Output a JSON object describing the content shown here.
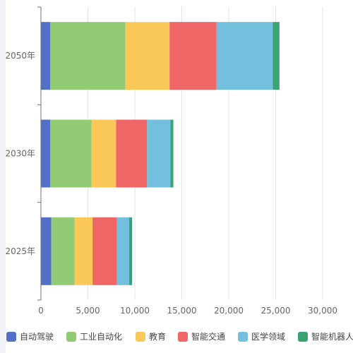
{
  "chart_data": {
    "type": "bar",
    "orientation": "horizontal",
    "stacked": true,
    "categories": [
      "2025年",
      "2030年",
      "2050年"
    ],
    "series": [
      {
        "name": "自动驾驶",
        "color": "#5470c6",
        "values": [
          1100,
          1000,
          1000
        ]
      },
      {
        "name": "工业自动化",
        "color": "#91cc75",
        "values": [
          2500,
          4400,
          8000
        ]
      },
      {
        "name": "教育",
        "color": "#fac858",
        "values": [
          1900,
          2600,
          4700
        ]
      },
      {
        "name": "智能交通",
        "color": "#ee6666",
        "values": [
          2600,
          3300,
          5000
        ]
      },
      {
        "name": "医学领域",
        "color": "#73c0de",
        "values": [
          1300,
          2500,
          6000
        ]
      },
      {
        "name": "智能机器人",
        "color": "#3ba272",
        "values": [
          300,
          300,
          700
        ]
      }
    ],
    "x_ticks": [
      "0",
      "5,000",
      "10,000",
      "15,000",
      "20,000",
      "25,000",
      "30,000"
    ],
    "xlim": [
      0,
      30000
    ],
    "grid": "vertical",
    "legend": "bottom"
  }
}
